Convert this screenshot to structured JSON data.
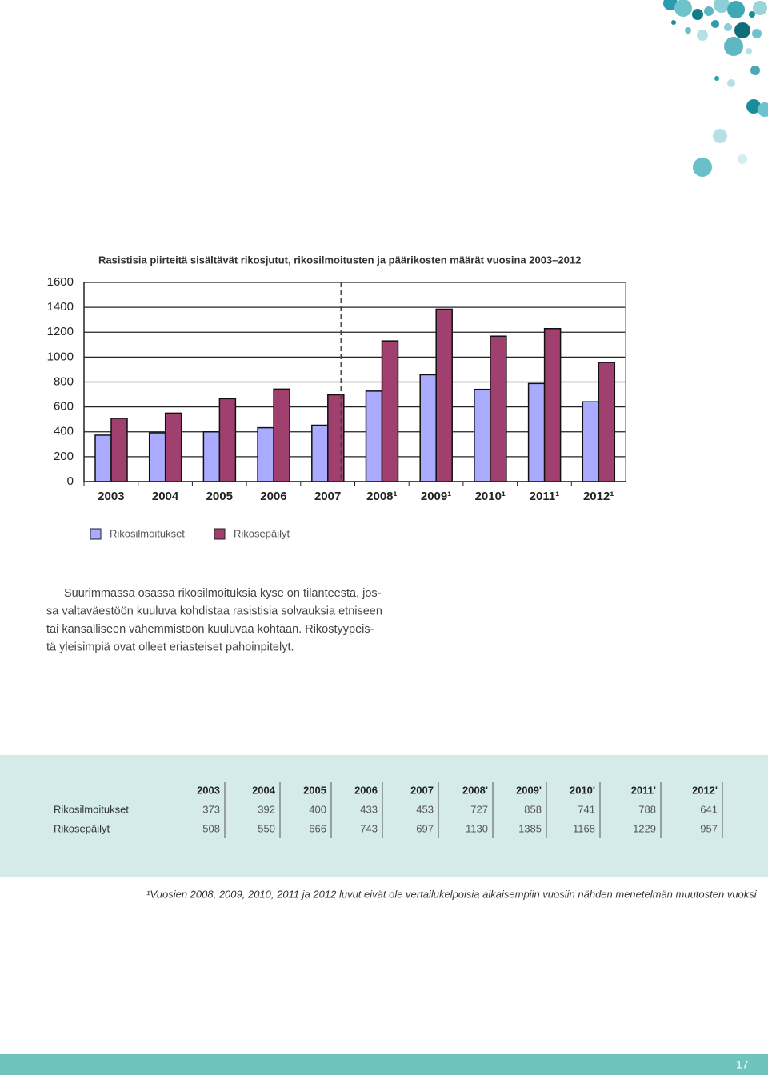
{
  "chart_data": {
    "type": "bar",
    "title": "Rasistisia piirteitä sisältävät rikosjutut, rikosilmoitusten ja päärikosten määrät vuosina 2003–2012",
    "categories": [
      "2003",
      "2004",
      "2005",
      "2006",
      "2007",
      "2008¹",
      "2009¹",
      "2010¹",
      "2011¹",
      "2012¹"
    ],
    "series": [
      {
        "name": "Rikosilmoitukset",
        "color": "#aaaaff",
        "values": [
          373,
          392,
          400,
          433,
          453,
          727,
          858,
          741,
          788,
          641
        ]
      },
      {
        "name": "Rikosepäilyt",
        "color": "#a0406e",
        "values": [
          508,
          550,
          666,
          743,
          697,
          1130,
          1385,
          1168,
          1229,
          957
        ]
      }
    ],
    "ylim": [
      0,
      1600
    ],
    "yticks": [
      0,
      200,
      400,
      600,
      800,
      1000,
      1200,
      1400,
      1600
    ],
    "grid": true
  },
  "paragraph": [
    "Suurimmassa osassa rikosilmoituksia kyse on tilanteesta, jos-",
    "sa valtaväestöön kuuluva kohdistaa rasistisia solvauksia etniseen",
    "tai kansalliseen vähemmistöön kuuluvaa kohtaan. Rikostyypeis-",
    "tä yleisimpiä ovat olleet eriasteiset pahoinpitelyt."
  ],
  "table": {
    "header": [
      "2003",
      "2004",
      "2005",
      "2006",
      "2007",
      "2008'",
      "2009'",
      "2010'",
      "2011'",
      "2012'"
    ],
    "rows": [
      [
        "Rikosilmoitukset",
        373,
        392,
        400,
        433,
        453,
        727,
        858,
        741,
        788,
        641
      ],
      [
        "Rikosepäilyt",
        508,
        550,
        666,
        743,
        697,
        1130,
        1385,
        1168,
        1229,
        957
      ]
    ]
  },
  "footnote": "¹Vuosien 2008, 2009, 2010, 2011 ja 2012 luvut eivät ole vertailukelpoisia aikaisempiin vuosiin nähden menetelmän muutosten vuoksi",
  "page_number": 17
}
